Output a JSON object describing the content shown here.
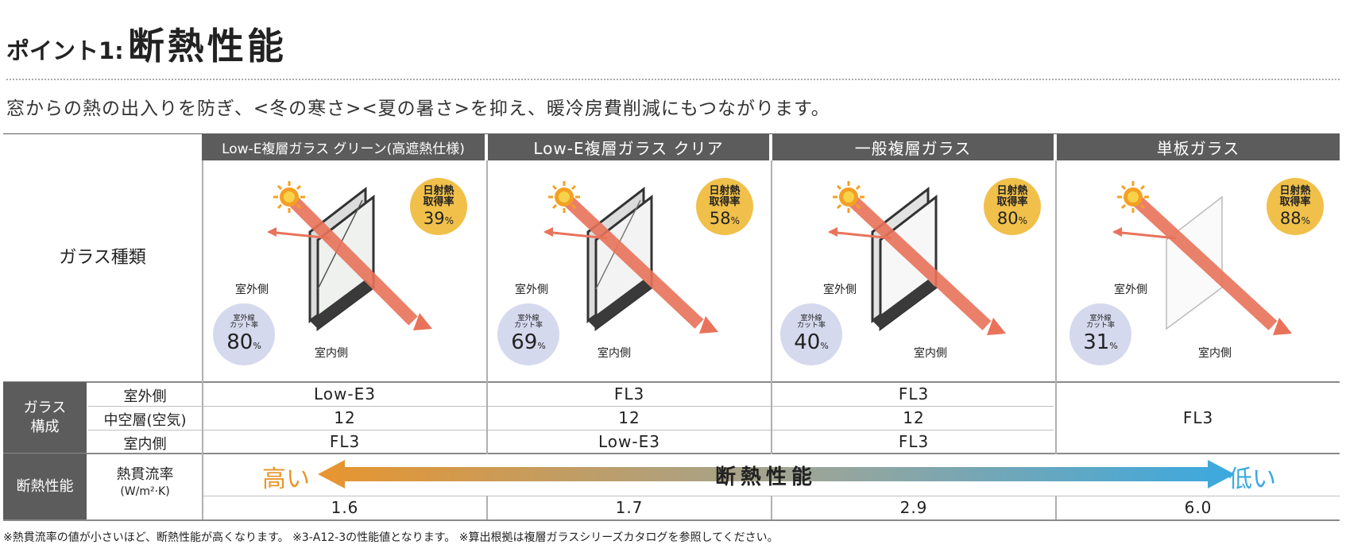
{
  "header": {
    "title_prefix": "ポイント1:",
    "title_main": "断熱性能",
    "subtitle": "窓からの熱の出入りを防ぎ、<冬の寒さ><夏の暑さ>を抑え、暖冷房費削減にもつながります。"
  },
  "row_labels": {
    "glass_type": "ガラス種類",
    "composition": "ガラス\n構成",
    "outdoor": "室外側",
    "air_layer": "中空層(空気)",
    "indoor": "室内側",
    "insulation": "断熱性能",
    "u_value": "熱貫流率",
    "u_unit": "(W/m²·K)"
  },
  "columns": [
    {
      "name": "Low-E複層ガラス グリーン(高遮熱仕様)",
      "solar_label": "日射熱\n取得率",
      "solar_value": "39",
      "uv_label": "室外線\nカット率",
      "uv_value": "80",
      "outdoor_side": "室外側",
      "indoor_side": "室内側",
      "outdoor": "Low-E3",
      "air": "12",
      "indoor": "FL3",
      "u": "1.6"
    },
    {
      "name": "Low-E複層ガラス クリア",
      "solar_label": "日射熱\n取得率",
      "solar_value": "58",
      "uv_label": "室外線\nカット率",
      "uv_value": "69",
      "outdoor_side": "室外側",
      "indoor_side": "室内側",
      "outdoor": "FL3",
      "air": "12",
      "indoor": "Low-E3",
      "u": "1.7"
    },
    {
      "name": "一般複層ガラス",
      "solar_label": "日射熱\n取得率",
      "solar_value": "80",
      "uv_label": "室外線\nカット率",
      "uv_value": "40",
      "outdoor_side": "室外側",
      "indoor_side": "室内側",
      "outdoor": "FL3",
      "air": "12",
      "indoor": "FL3",
      "u": "2.9"
    },
    {
      "name": "単板ガラス",
      "solar_label": "日射熱\n取得率",
      "solar_value": "88",
      "uv_label": "室外線\nカット率",
      "uv_value": "31",
      "outdoor_side": "室外側",
      "indoor_side": "室内側",
      "single": "FL3",
      "u": "6.0"
    }
  ],
  "percent_sign": "%",
  "arrow": {
    "high": "高い",
    "center": "断熱性能",
    "low": "低い",
    "color_left": "#e8952e",
    "color_right": "#3aa9e0"
  },
  "colors": {
    "header_bg": "#5c5c5c",
    "solar_circle": "#f0c04a",
    "uv_circle": "#d5d9ee",
    "ray": "#e8735a"
  },
  "footnote": "※熱貫流率の値が小さいほど、断熱性能が高くなります。 ※3-A12-3の性能値となります。 ※算出根拠は複層ガラスシリーズカタログを参照してください。"
}
